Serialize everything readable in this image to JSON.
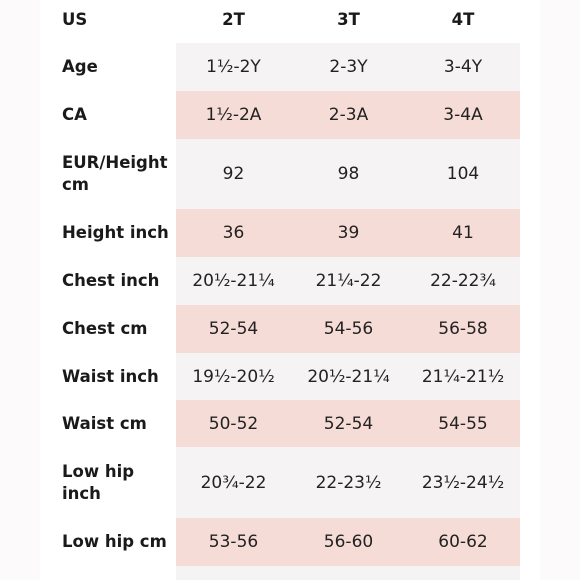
{
  "table": {
    "header": {
      "label": "US",
      "sizes": [
        "2T",
        "3T",
        "4T"
      ]
    },
    "rows": [
      {
        "label": "Age",
        "values": [
          "1½-2Y",
          "2-3Y",
          "3-4Y"
        ],
        "shade": "light"
      },
      {
        "label": "CA",
        "values": [
          "1½-2A",
          "2-3A",
          "3-4A"
        ],
        "shade": "pink"
      },
      {
        "label": "EUR/Height cm",
        "values": [
          "92",
          "98",
          "104"
        ],
        "shade": "light"
      },
      {
        "label": "Height inch",
        "values": [
          "36",
          "39",
          "41"
        ],
        "shade": "pink"
      },
      {
        "label": "Chest inch",
        "values": [
          "20½-21¼",
          "21¼-22",
          "22-22¾"
        ],
        "shade": "light"
      },
      {
        "label": "Chest cm",
        "values": [
          "52-54",
          "54-56",
          "56-58"
        ],
        "shade": "pink"
      },
      {
        "label": "Waist inch",
        "values": [
          "19½-20½",
          "20½-21¼",
          "21¼-21½"
        ],
        "shade": "light"
      },
      {
        "label": "Waist cm",
        "values": [
          "50-52",
          "52-54",
          "54-55"
        ],
        "shade": "pink"
      },
      {
        "label": "Low hip inch",
        "values": [
          "20¾-22",
          "22-23½",
          "23½-24½"
        ],
        "shade": "light"
      },
      {
        "label": "Low hip cm",
        "values": [
          "53-56",
          "56-60",
          "60-62"
        ],
        "shade": "pink"
      }
    ]
  },
  "colors": {
    "pink_band": "#f6dcd7",
    "light_band": "#f5f3f3",
    "card": "#ffffff",
    "text": "#1c1c1c"
  }
}
